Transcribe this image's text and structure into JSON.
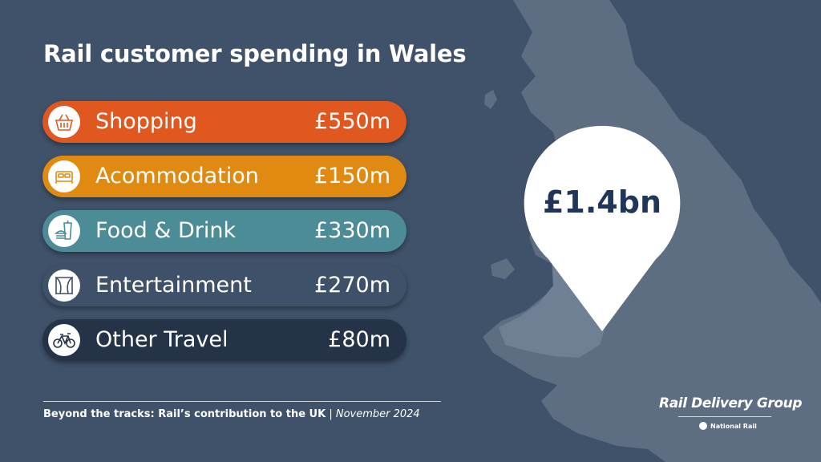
{
  "title": "Rail customer spending in Wales",
  "categories": [
    {
      "label": "Shopping",
      "value": "£550m",
      "color": "#e0581f",
      "icon": "shopping-basket-icon"
    },
    {
      "label": "Acommodation",
      "value": "£150m",
      "color": "#e08a12",
      "icon": "bed-icon"
    },
    {
      "label": "Food & Drink",
      "value": "£330m",
      "color": "#4c8c96",
      "icon": "food-drink-icon"
    },
    {
      "label": "Entertainment",
      "value": "£270m",
      "color": "#3e5169",
      "icon": "theatre-stage-icon"
    },
    {
      "label": "Other Travel",
      "value": "£80m",
      "color": "#253348",
      "icon": "bicycle-icon"
    }
  ],
  "total": "£1.4bn",
  "footer": {
    "source_bold": "Beyond the tracks: Rail’s contribution to the UK",
    "separator": "|",
    "date": "November 2024"
  },
  "brand": {
    "name": "Rail Delivery Group",
    "sub": "National Rail"
  }
}
